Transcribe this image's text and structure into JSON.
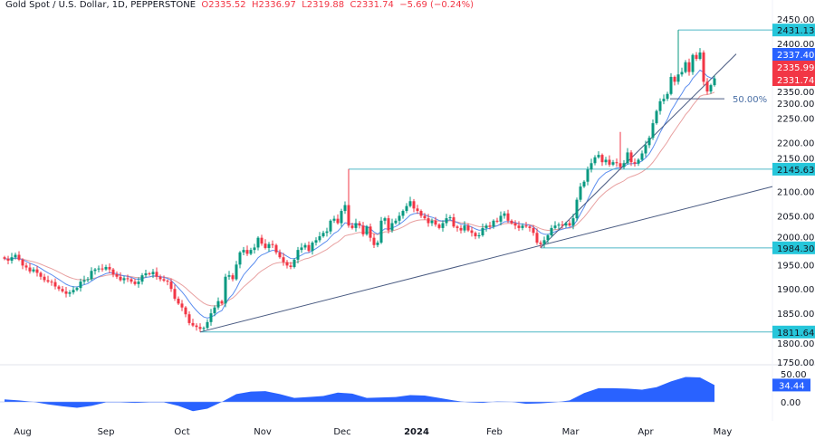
{
  "header": {
    "symbol": "Gold Spot / U.S. Dollar, 1D, PEPPERSTONE",
    "open": "O2335.52",
    "high": "H2336.97",
    "low": "L2319.88",
    "close": "C2331.74",
    "change": "−5.69 (−0.24%)"
  },
  "colors": {
    "up": "#089981",
    "down": "#f23645",
    "ma_fast": "#5b8def",
    "ma_slow": "#e8a0a0",
    "level": "#4fb8c6",
    "trend": "#4a5b82",
    "osc": "#2962ff",
    "tag_teal": "#26c6da",
    "tag_blue": "#2962ff",
    "tag_red": "#f23645"
  },
  "chart_data": {
    "type": "candlestick",
    "ylim": [
      1750,
      2450
    ],
    "y_ticks": [
      "2450.00",
      "2400.00",
      "2350.00",
      "2300.00",
      "2250.00",
      "2200.00",
      "2150.00",
      "2100.00",
      "2050.00",
      "2000.00",
      "1950.00",
      "1900.00",
      "1850.00",
      "1800.00",
      "1750.00"
    ],
    "x_ticks": [
      "Aug",
      "Sep",
      "Oct",
      "Nov",
      "Dec",
      "2024",
      "Feb",
      "Mar",
      "Apr",
      "May"
    ],
    "closes": [
      1962,
      1958,
      1965,
      1970,
      1960,
      1948,
      1944,
      1936,
      1940,
      1933,
      1925,
      1918,
      1915,
      1914,
      1905,
      1900,
      1895,
      1890,
      1893,
      1898,
      1902,
      1915,
      1918,
      1920,
      1937,
      1940,
      1942,
      1940,
      1945,
      1940,
      1930,
      1925,
      1918,
      1922,
      1920,
      1915,
      1910,
      1915,
      1928,
      1932,
      1930,
      1935,
      1925,
      1920,
      1917,
      1915,
      1900,
      1880,
      1870,
      1862,
      1848,
      1830,
      1825,
      1822,
      1818,
      1820,
      1832,
      1850,
      1862,
      1875,
      1870,
      1925,
      1928,
      1920,
      1950,
      1975,
      1980,
      1972,
      1980,
      1985,
      2005,
      1993,
      1984,
      1992,
      1990,
      1975,
      1965,
      1955,
      1948,
      1945,
      1960,
      1980,
      1985,
      1990,
      1978,
      1995,
      2000,
      2008,
      2015,
      2018,
      2040,
      2044,
      2035,
      2060,
      2072,
      2030,
      2025,
      2035,
      2030,
      2012,
      2028,
      2005,
      1990,
      1995,
      2040,
      2045,
      2020,
      2035,
      2040,
      2050,
      2060,
      2070,
      2080,
      2065,
      2060,
      2050,
      2045,
      2035,
      2040,
      2032,
      2025,
      2035,
      2045,
      2047,
      2028,
      2025,
      2020,
      2030,
      2020,
      2015,
      2008,
      2010,
      2025,
      2030,
      2028,
      2040,
      2038,
      2050,
      2055,
      2040,
      2035,
      2030,
      2025,
      2030,
      2028,
      2025,
      2015,
      1995,
      1992,
      2000,
      2010,
      2025,
      2030,
      2032,
      2030,
      2035,
      2030,
      2045,
      2083,
      2110,
      2120,
      2145,
      2158,
      2170,
      2175,
      2160,
      2165,
      2155,
      2160,
      2158,
      2150,
      2158,
      2180,
      2160,
      2157,
      2165,
      2178,
      2195,
      2210,
      2240,
      2265,
      2285,
      2290,
      2300,
      2335,
      2325,
      2340,
      2345,
      2365,
      2345,
      2380,
      2372,
      2385,
      2325,
      2305,
      2318,
      2331.74
    ],
    "notable_highs": {
      "95": 2146,
      "170": 2222,
      "186": 2431.13
    },
    "notable_lows": {
      "54": 1811.64,
      "148": 1984.3
    },
    "levels": [
      {
        "label": "2431.13",
        "value": 2431.13
      },
      {
        "label": "2145.63",
        "value": 2145.63
      },
      {
        "label": "1984.30",
        "value": 1984.3
      },
      {
        "label": "1811.64",
        "value": 1811.64
      }
    ],
    "trendlines": [
      {
        "from": [
          54,
          1811.64
        ],
        "to": [
          212,
          2110
        ]
      },
      {
        "from": [
          148,
          1984.3
        ],
        "to": [
          202,
          2382
        ]
      }
    ],
    "fib": {
      "label": "50.00%",
      "value": 2290
    },
    "price_tags": [
      {
        "label": "2337.40",
        "color": "blue",
        "value": 2337.4
      },
      {
        "label": "2335.99",
        "color": "red",
        "value": 2335.99
      },
      {
        "label": "2331.74",
        "color": "red",
        "value": 2331.74
      }
    ],
    "oscillator": {
      "ticks": [
        "50.00",
        "0.00"
      ],
      "current": "34.44",
      "values": [
        5,
        3,
        0,
        -5,
        -9,
        -12,
        -8,
        -1,
        -1,
        -2,
        -1,
        -1,
        -8,
        -19,
        -14,
        0,
        16,
        21,
        22,
        16,
        8,
        10,
        12,
        19,
        17,
        8,
        9,
        10,
        14,
        13,
        8,
        3,
        -1,
        -2,
        1,
        0,
        -4,
        -3,
        -1,
        3,
        18,
        28,
        28,
        27,
        25,
        30,
        42,
        51,
        50,
        34.44
      ]
    }
  }
}
